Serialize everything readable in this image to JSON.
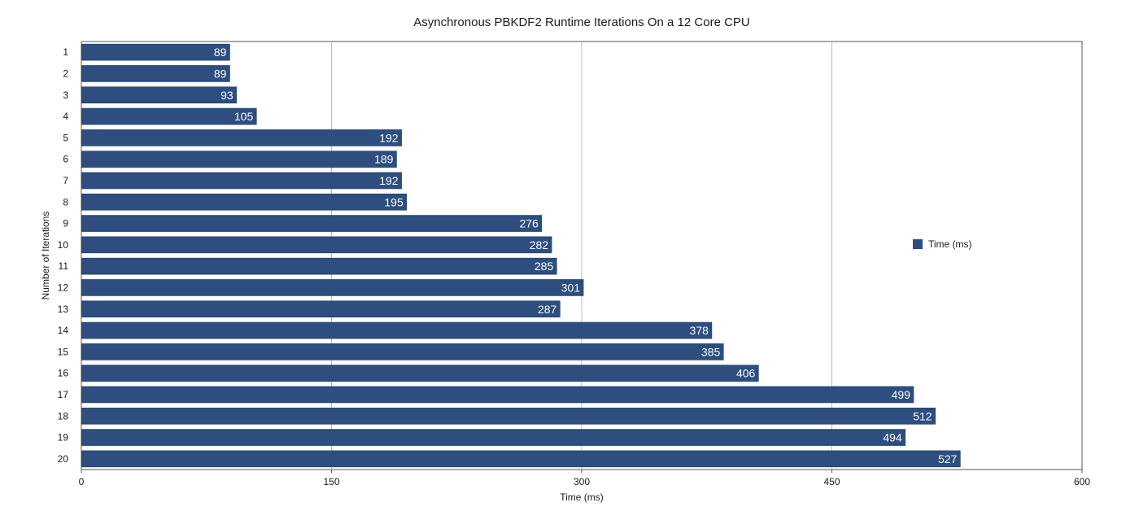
{
  "chart_data": {
    "type": "bar",
    "orientation": "horizontal",
    "title": "Asynchronous PBKDF2 Runtime Iterations On a 12 Core CPU",
    "xlabel": "Time (ms)",
    "ylabel": "Number of Iterations",
    "xlim": [
      0,
      600
    ],
    "xticks": [
      "0",
      "150",
      "300",
      "450",
      "600"
    ],
    "categories": [
      "1",
      "2",
      "3",
      "4",
      "5",
      "6",
      "7",
      "8",
      "9",
      "10",
      "11",
      "12",
      "13",
      "14",
      "15",
      "16",
      "17",
      "18",
      "19",
      "20"
    ],
    "series": [
      {
        "name": "Time (ms)",
        "color": "#2d4e7e",
        "values": [
          89,
          89,
          93,
          105,
          192,
          189,
          192,
          195,
          276,
          282,
          285,
          301,
          287,
          378,
          385,
          406,
          499,
          512,
          494,
          527
        ]
      }
    ],
    "data_labels": true,
    "grid": "vertical",
    "legend_position": "right"
  }
}
